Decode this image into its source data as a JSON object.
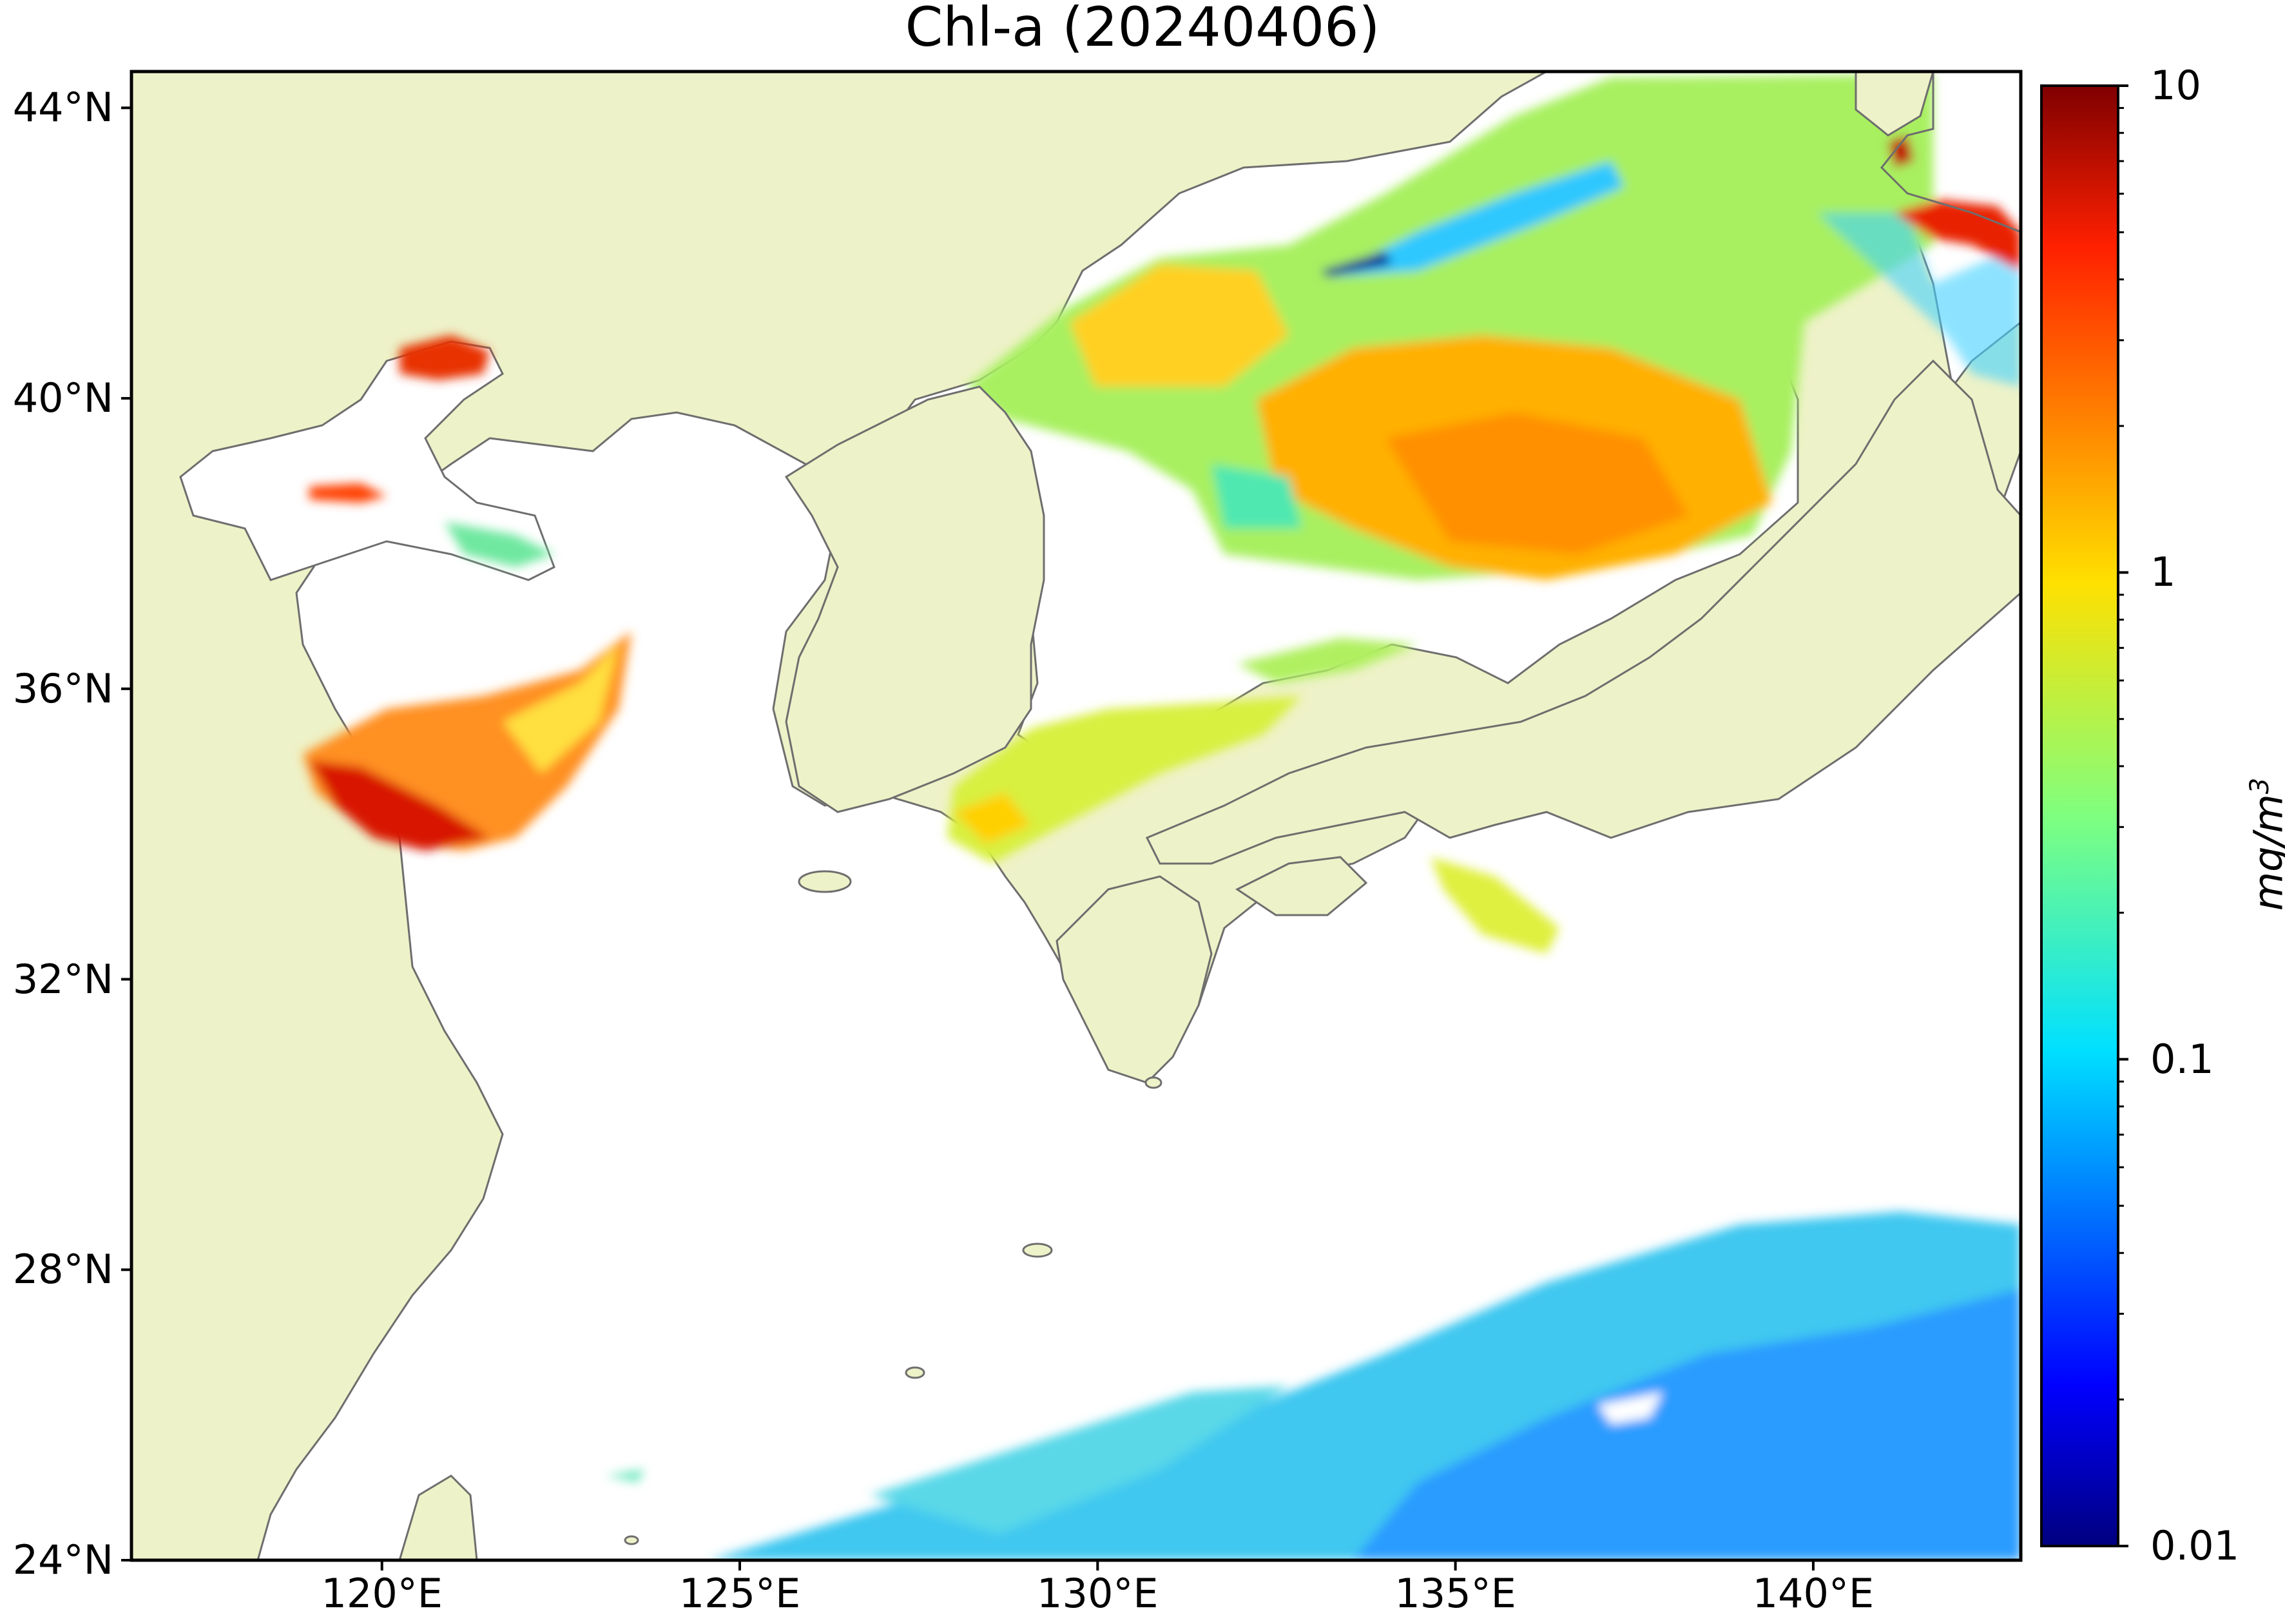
{
  "title": "Chl-a (20240406)",
  "map": {
    "region": "East China Sea, Yellow Sea, Sea of Japan",
    "lat_range": [
      24,
      44.5
    ],
    "lon_range": [
      116.5,
      142.9
    ],
    "lat_ticks": [
      {
        "value": 44,
        "label": "44°N"
      },
      {
        "value": 40,
        "label": "40°N"
      },
      {
        "value": 36,
        "label": "36°N"
      },
      {
        "value": 32,
        "label": "32°N"
      },
      {
        "value": 28,
        "label": "28°N"
      },
      {
        "value": 24,
        "label": "24°N"
      }
    ],
    "lon_ticks": [
      {
        "value": 120,
        "label": "120°E"
      },
      {
        "value": 125,
        "label": "125°E"
      },
      {
        "value": 130,
        "label": "130°E"
      },
      {
        "value": 135,
        "label": "135°E"
      },
      {
        "value": 140,
        "label": "140°E"
      }
    ],
    "land_color": "#eef2c8",
    "no_data_color": "#ffffff",
    "coastline_color": "#6e6e6e",
    "features": [
      {
        "name": "Bohai Sea",
        "level": "high",
        "approx_value": 5
      },
      {
        "name": "Yellow Sea coastal (Jiangsu)",
        "level": "high",
        "approx_value": 6
      },
      {
        "name": "Sea of Japan central",
        "level": "elevated",
        "approx_value": 2
      },
      {
        "name": "East Korea Bay",
        "level": "moderate",
        "approx_value": 1
      },
      {
        "name": "Tsushima Strait",
        "level": "moderate",
        "approx_value": 0.8
      },
      {
        "name": "Kuroshio / subtropical Pacific",
        "level": "low",
        "approx_value": 0.08
      }
    ]
  },
  "colorbar": {
    "scale": "log",
    "min": 0.01,
    "max": 10,
    "colormap": "jet",
    "ticks": [
      {
        "value": 10,
        "label": "10"
      },
      {
        "value": 1,
        "label": "1"
      },
      {
        "value": 0.1,
        "label": "0.1"
      },
      {
        "value": 0.01,
        "label": "0.01"
      }
    ],
    "unit_base": "mg/m",
    "unit_exp": "3"
  }
}
